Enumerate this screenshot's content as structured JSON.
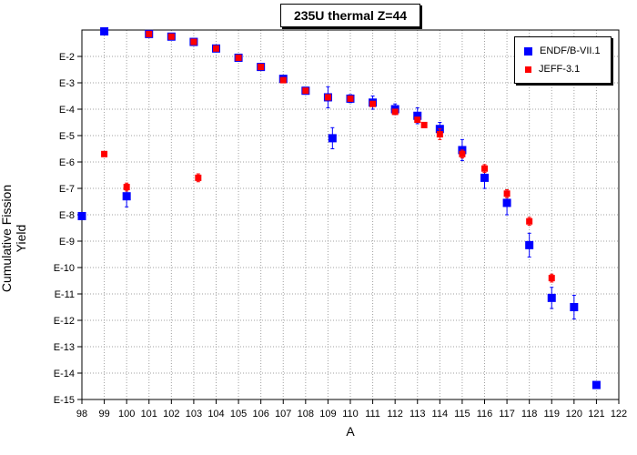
{
  "chart_data": {
    "type": "scatter",
    "title": "235U thermal Z=44",
    "xlabel": "A",
    "ylabel": "Cumulative Fission Yield",
    "xlim": [
      98,
      122
    ],
    "ylim_log10": [
      -15,
      -1
    ],
    "y_scale": "log",
    "grid": true,
    "legend_position": "top-right",
    "x_ticks": [
      "98",
      "99",
      "100",
      "101",
      "102",
      "103",
      "104",
      "105",
      "106",
      "107",
      "108",
      "109",
      "110",
      "111",
      "112",
      "113",
      "114",
      "115",
      "116",
      "117",
      "118",
      "119",
      "120",
      "121",
      "122"
    ],
    "y_ticks": [
      {
        "value": -2,
        "label": "E-2"
      },
      {
        "value": -3,
        "label": "E-3"
      },
      {
        "value": -4,
        "label": "E-4"
      },
      {
        "value": -5,
        "label": "E-5"
      },
      {
        "value": -6,
        "label": "E-6"
      },
      {
        "value": -7,
        "label": "E-7"
      },
      {
        "value": -8,
        "label": "E-8"
      },
      {
        "value": -9,
        "label": "E-9"
      },
      {
        "value": -10,
        "label": "E-10"
      },
      {
        "value": -11,
        "label": "E-11"
      },
      {
        "value": -12,
        "label": "E-12"
      },
      {
        "value": -13,
        "label": "E-13"
      },
      {
        "value": -14,
        "label": "E-14"
      },
      {
        "value": -15,
        "label": "E-15"
      }
    ],
    "series": [
      {
        "name": "ENDF/B-VII.1",
        "color": "#0000ff",
        "marker": "square",
        "points": [
          {
            "A": 98,
            "log10y": -8.05,
            "err": 0
          },
          {
            "A": 99,
            "log10y": -1.05,
            "err": 0
          },
          {
            "A": 100,
            "log10y": -7.3,
            "err": 0.4
          },
          {
            "A": 101,
            "log10y": -1.15,
            "err": 0
          },
          {
            "A": 102,
            "log10y": -1.25,
            "err": 0
          },
          {
            "A": 103,
            "log10y": -1.45,
            "err": 0
          },
          {
            "A": 104,
            "log10y": -1.7,
            "err": 0
          },
          {
            "A": 105,
            "log10y": -2.05,
            "err": 0
          },
          {
            "A": 106,
            "log10y": -2.4,
            "err": 0
          },
          {
            "A": 107,
            "log10y": -2.85,
            "err": 0
          },
          {
            "A": 108,
            "log10y": -3.3,
            "err": 0
          },
          {
            "A": 109,
            "log10y": -3.55,
            "err": 0.4
          },
          {
            "A": 109.2,
            "log10y": -5.1,
            "err": 0.4
          },
          {
            "A": 110,
            "log10y": -3.6,
            "err": 0.15
          },
          {
            "A": 111,
            "log10y": -3.75,
            "err": 0.25
          },
          {
            "A": 112,
            "log10y": -4.0,
            "err": 0.2
          },
          {
            "A": 113,
            "log10y": -4.25,
            "err": 0.3
          },
          {
            "A": 114,
            "log10y": -4.75,
            "err": 0.25
          },
          {
            "A": 115,
            "log10y": -5.55,
            "err": 0.4
          },
          {
            "A": 116,
            "log10y": -6.6,
            "err": 0.4
          },
          {
            "A": 117,
            "log10y": -7.55,
            "err": 0.45
          },
          {
            "A": 118,
            "log10y": -9.15,
            "err": 0.45
          },
          {
            "A": 119,
            "log10y": -11.15,
            "err": 0.4
          },
          {
            "A": 120,
            "log10y": -11.5,
            "err": 0.45
          },
          {
            "A": 121,
            "log10y": -14.45,
            "err": 0
          }
        ]
      },
      {
        "name": "JEFF-3.1",
        "color": "#ff0000",
        "marker": "square",
        "points": [
          {
            "A": 99,
            "log10y": -5.7,
            "err": 0
          },
          {
            "A": 100,
            "log10y": -6.95,
            "err": 0.15
          },
          {
            "A": 101,
            "log10y": -1.15,
            "err": 0
          },
          {
            "A": 102,
            "log10y": -1.25,
            "err": 0
          },
          {
            "A": 103,
            "log10y": -1.45,
            "err": 0
          },
          {
            "A": 103.2,
            "log10y": -6.6,
            "err": 0.15
          },
          {
            "A": 104,
            "log10y": -1.7,
            "err": 0
          },
          {
            "A": 105,
            "log10y": -2.05,
            "err": 0
          },
          {
            "A": 106,
            "log10y": -2.4,
            "err": 0
          },
          {
            "A": 107,
            "log10y": -2.9,
            "err": 0
          },
          {
            "A": 108,
            "log10y": -3.3,
            "err": 0
          },
          {
            "A": 109,
            "log10y": -3.55,
            "err": 0
          },
          {
            "A": 110,
            "log10y": -3.6,
            "err": 0
          },
          {
            "A": 111,
            "log10y": -3.8,
            "err": 0
          },
          {
            "A": 112,
            "log10y": -4.1,
            "err": 0
          },
          {
            "A": 113,
            "log10y": -4.4,
            "err": 0
          },
          {
            "A": 113.3,
            "log10y": -4.6,
            "err": 0
          },
          {
            "A": 114,
            "log10y": -4.95,
            "err": 0.2
          },
          {
            "A": 115,
            "log10y": -5.7,
            "err": 0.15
          },
          {
            "A": 116,
            "log10y": -6.25,
            "err": 0.15
          },
          {
            "A": 117,
            "log10y": -7.2,
            "err": 0.15
          },
          {
            "A": 118,
            "log10y": -8.25,
            "err": 0.15
          },
          {
            "A": 119,
            "log10y": -10.4,
            "err": 0.15
          }
        ]
      }
    ]
  }
}
